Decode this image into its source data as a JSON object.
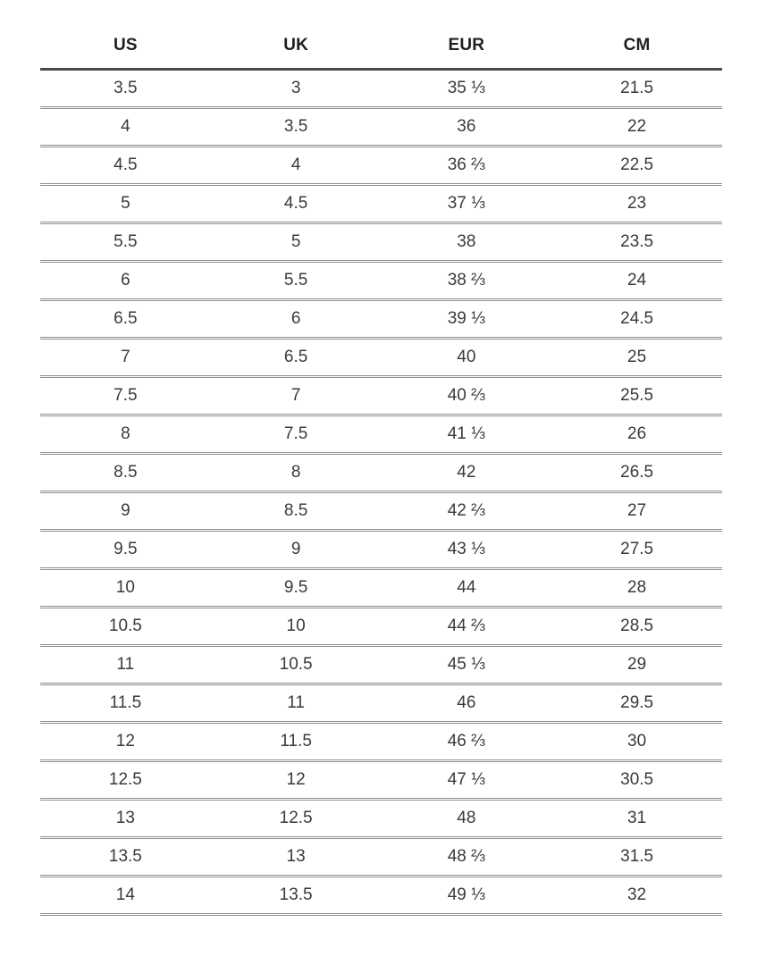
{
  "colors": {
    "background": "#ffffff",
    "header_rule": "#4a4a4a",
    "row_rule": "#8f8f8f",
    "header_text": "#1f1f1f",
    "cell_text": "#3a3a3a"
  },
  "chart_data": {
    "type": "table",
    "title": "",
    "columns": [
      "US",
      "UK",
      "EUR",
      "CM"
    ],
    "rows": [
      [
        "3.5",
        "3",
        "35 ⅓",
        "21.5"
      ],
      [
        "4",
        "3.5",
        "36",
        "22"
      ],
      [
        "4.5",
        "4",
        "36 ⅔",
        "22.5"
      ],
      [
        "5",
        "4.5",
        "37 ⅓",
        "23"
      ],
      [
        "5.5",
        "5",
        "38",
        "23.5"
      ],
      [
        "6",
        "5.5",
        "38 ⅔",
        "24"
      ],
      [
        "6.5",
        "6",
        "39 ⅓",
        "24.5"
      ],
      [
        "7",
        "6.5",
        "40",
        "25"
      ],
      [
        "7.5",
        "7",
        "40 ⅔",
        "25.5"
      ],
      [
        "8",
        "7.5",
        "41 ⅓",
        "26"
      ],
      [
        "8.5",
        "8",
        "42",
        "26.5"
      ],
      [
        "9",
        "8.5",
        "42 ⅔",
        "27"
      ],
      [
        "9.5",
        "9",
        "43 ⅓",
        "27.5"
      ],
      [
        "10",
        "9.5",
        "44",
        "28"
      ],
      [
        "10.5",
        "10",
        "44 ⅔",
        "28.5"
      ],
      [
        "11",
        "10.5",
        "45 ⅓",
        "29"
      ],
      [
        "11.5",
        "11",
        "46",
        "29.5"
      ],
      [
        "12",
        "11.5",
        "46 ⅔",
        "30"
      ],
      [
        "12.5",
        "12",
        "47 ⅓",
        "30.5"
      ],
      [
        "13",
        "12.5",
        "48",
        "31"
      ],
      [
        "13.5",
        "13",
        "48 ⅔",
        "31.5"
      ],
      [
        "14",
        "13.5",
        "49 ⅓",
        "32"
      ]
    ]
  }
}
